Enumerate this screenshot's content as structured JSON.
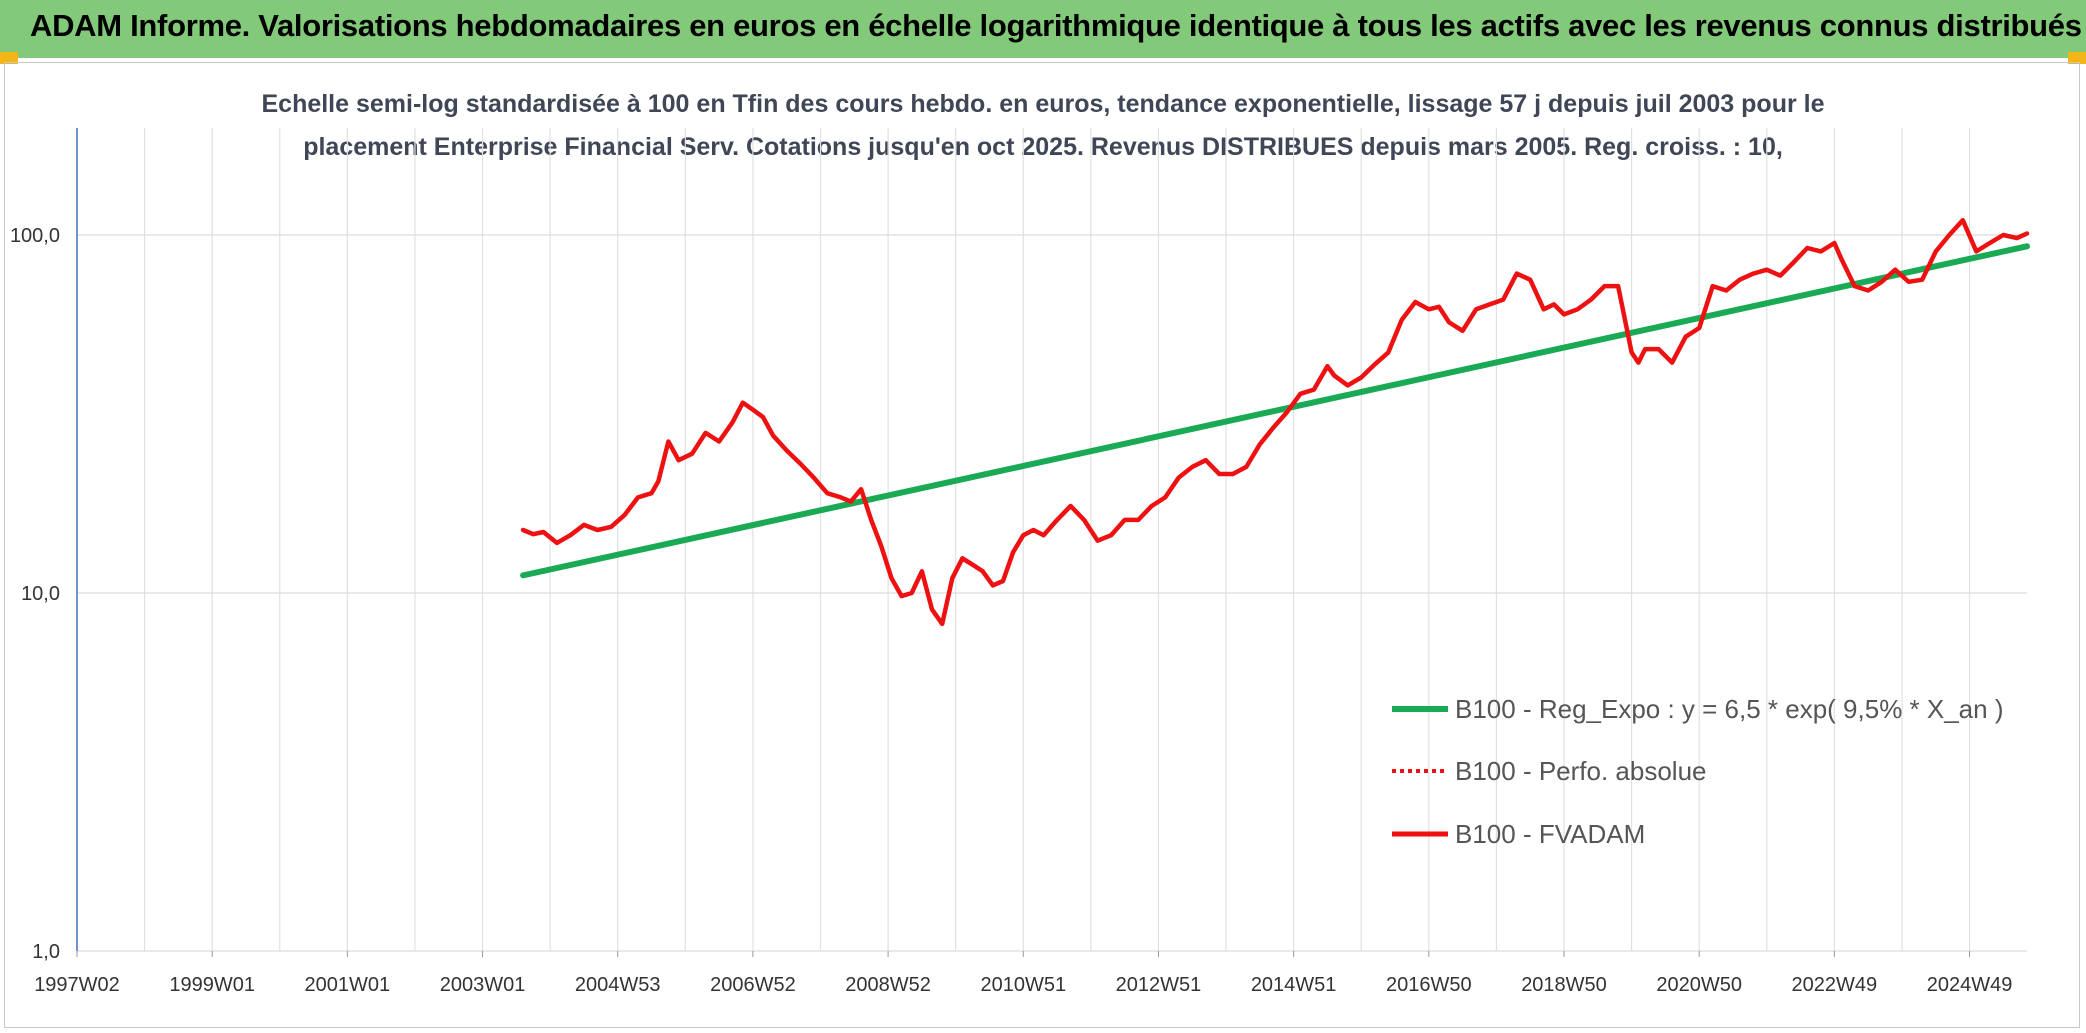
{
  "banner": {
    "title": "ADAM Informe. Valorisations hebdomadaires en euros en échelle logarithmique identique à tous les actifs avec les revenus connus distribués"
  },
  "colors": {
    "banner": "#82c97a",
    "corner": "#f2b619",
    "trend": "#1aaa55",
    "price": "#ee1111"
  },
  "chart_data": {
    "type": "line",
    "title_line1": "Echelle semi-log standardisée à 100 en Tfin des cours hebdo. en euros, tendance exponentielle, lissage 57 j depuis juil 2003 pour le",
    "title_line2": "placement Enterprise Financial Serv. Cotations jusqu'en oct 2025. Revenus DISTRIBUES depuis mars 2005. Reg. croiss. : 10,",
    "y_scale": "log",
    "ylim": [
      1,
      200
    ],
    "y_ticks": [
      {
        "value": 100,
        "label": "100,0"
      },
      {
        "value": 10,
        "label": "10,0"
      },
      {
        "value": 1,
        "label": "1,0"
      }
    ],
    "xlim": [
      1997.0,
      2025.85
    ],
    "x_ticks": [
      {
        "t": 1997.0,
        "label": "1997W02"
      },
      {
        "t": 1999.0,
        "label": "1999W01"
      },
      {
        "t": 2001.0,
        "label": "2001W01"
      },
      {
        "t": 2003.0,
        "label": "2003W01"
      },
      {
        "t": 2005.0,
        "label": "2004W53"
      },
      {
        "t": 2007.0,
        "label": "2006W52"
      },
      {
        "t": 2009.0,
        "label": "2008W52"
      },
      {
        "t": 2011.0,
        "label": "2010W51"
      },
      {
        "t": 2013.0,
        "label": "2012W51"
      },
      {
        "t": 2015.0,
        "label": "2014W51"
      },
      {
        "t": 2017.0,
        "label": "2016W50"
      },
      {
        "t": 2019.0,
        "label": "2018W50"
      },
      {
        "t": 2021.0,
        "label": "2020W50"
      },
      {
        "t": 2023.0,
        "label": "2022W49"
      },
      {
        "t": 2025.0,
        "label": "2024W49"
      }
    ],
    "gridlines_every_years": 1,
    "series": [
      {
        "name": "B100 - Reg_Expo : y = 6,5 * exp( 9,5% *  X_an )",
        "style": "solid-thick",
        "x": [
          2003.6,
          2025.85
        ],
        "values": [
          11.2,
          93
        ]
      },
      {
        "name": "B100 - Perfo. absolue",
        "style": "dotted",
        "x": [],
        "values": []
      },
      {
        "name": "B100 - FVADAM",
        "style": "solid",
        "x": [
          2003.6,
          2003.75,
          2003.9,
          2004.1,
          2004.3,
          2004.5,
          2004.7,
          2004.9,
          2005.1,
          2005.3,
          2005.5,
          2005.6,
          2005.75,
          2005.9,
          2006.1,
          2006.3,
          2006.5,
          2006.7,
          2006.85,
          2007.0,
          2007.15,
          2007.3,
          2007.5,
          2007.7,
          2007.9,
          2008.1,
          2008.3,
          2008.45,
          2008.6,
          2008.75,
          2008.9,
          2009.05,
          2009.2,
          2009.35,
          2009.5,
          2009.65,
          2009.8,
          2009.95,
          2010.1,
          2010.25,
          2010.4,
          2010.55,
          2010.7,
          2010.85,
          2011.0,
          2011.15,
          2011.3,
          2011.5,
          2011.7,
          2011.9,
          2012.1,
          2012.3,
          2012.5,
          2012.7,
          2012.9,
          2013.1,
          2013.3,
          2013.5,
          2013.7,
          2013.9,
          2014.1,
          2014.3,
          2014.5,
          2014.7,
          2014.9,
          2015.1,
          2015.3,
          2015.5,
          2015.6,
          2015.8,
          2016.0,
          2016.2,
          2016.4,
          2016.6,
          2016.8,
          2017.0,
          2017.15,
          2017.3,
          2017.5,
          2017.7,
          2017.9,
          2018.1,
          2018.3,
          2018.5,
          2018.7,
          2018.85,
          2019.0,
          2019.2,
          2019.4,
          2019.6,
          2019.8,
          2020.0,
          2020.1,
          2020.2,
          2020.4,
          2020.6,
          2020.8,
          2021.0,
          2021.2,
          2021.4,
          2021.6,
          2021.8,
          2022.0,
          2022.2,
          2022.4,
          2022.6,
          2022.8,
          2023.0,
          2023.1,
          2023.3,
          2023.5,
          2023.7,
          2023.9,
          2024.1,
          2024.3,
          2024.5,
          2024.7,
          2024.9,
          2025.1,
          2025.3,
          2025.5,
          2025.7,
          2025.85
        ],
        "values": [
          15.0,
          14.6,
          14.8,
          13.8,
          14.5,
          15.5,
          15.0,
          15.3,
          16.5,
          18.5,
          19.0,
          20.5,
          26.5,
          23.5,
          24.5,
          28.0,
          26.5,
          30.0,
          34.0,
          32.5,
          31.0,
          27.5,
          25.0,
          23.0,
          21.0,
          19.0,
          18.5,
          18.0,
          19.5,
          16.0,
          13.5,
          11.0,
          9.8,
          10.0,
          11.5,
          9.0,
          8.2,
          11.0,
          12.5,
          12.0,
          11.5,
          10.5,
          10.8,
          13.0,
          14.5,
          15.0,
          14.5,
          16.0,
          17.5,
          16.0,
          14.0,
          14.5,
          16.0,
          16.0,
          17.5,
          18.5,
          21.0,
          22.5,
          23.5,
          21.5,
          21.5,
          22.5,
          26.0,
          29.0,
          32.0,
          36.0,
          37.0,
          43.0,
          40.5,
          38.0,
          40.0,
          43.5,
          47.0,
          58.0,
          65.0,
          62.0,
          63.0,
          57.0,
          54.0,
          62.0,
          64.0,
          66.0,
          78.0,
          75.0,
          62.0,
          64.0,
          60.0,
          62.0,
          66.0,
          72.0,
          72.0,
          47.0,
          44.0,
          48.0,
          48.0,
          44.0,
          52.0,
          55.0,
          72.0,
          70.0,
          75.0,
          78.0,
          80.0,
          77.0,
          84.0,
          92.0,
          90.0,
          95.0,
          86.0,
          72.0,
          70.0,
          74.0,
          80.0,
          74.0,
          75.0,
          90.0,
          100.0,
          110.0,
          90.0,
          95.0,
          100.0,
          98.0,
          101.0
        ]
      }
    ]
  }
}
